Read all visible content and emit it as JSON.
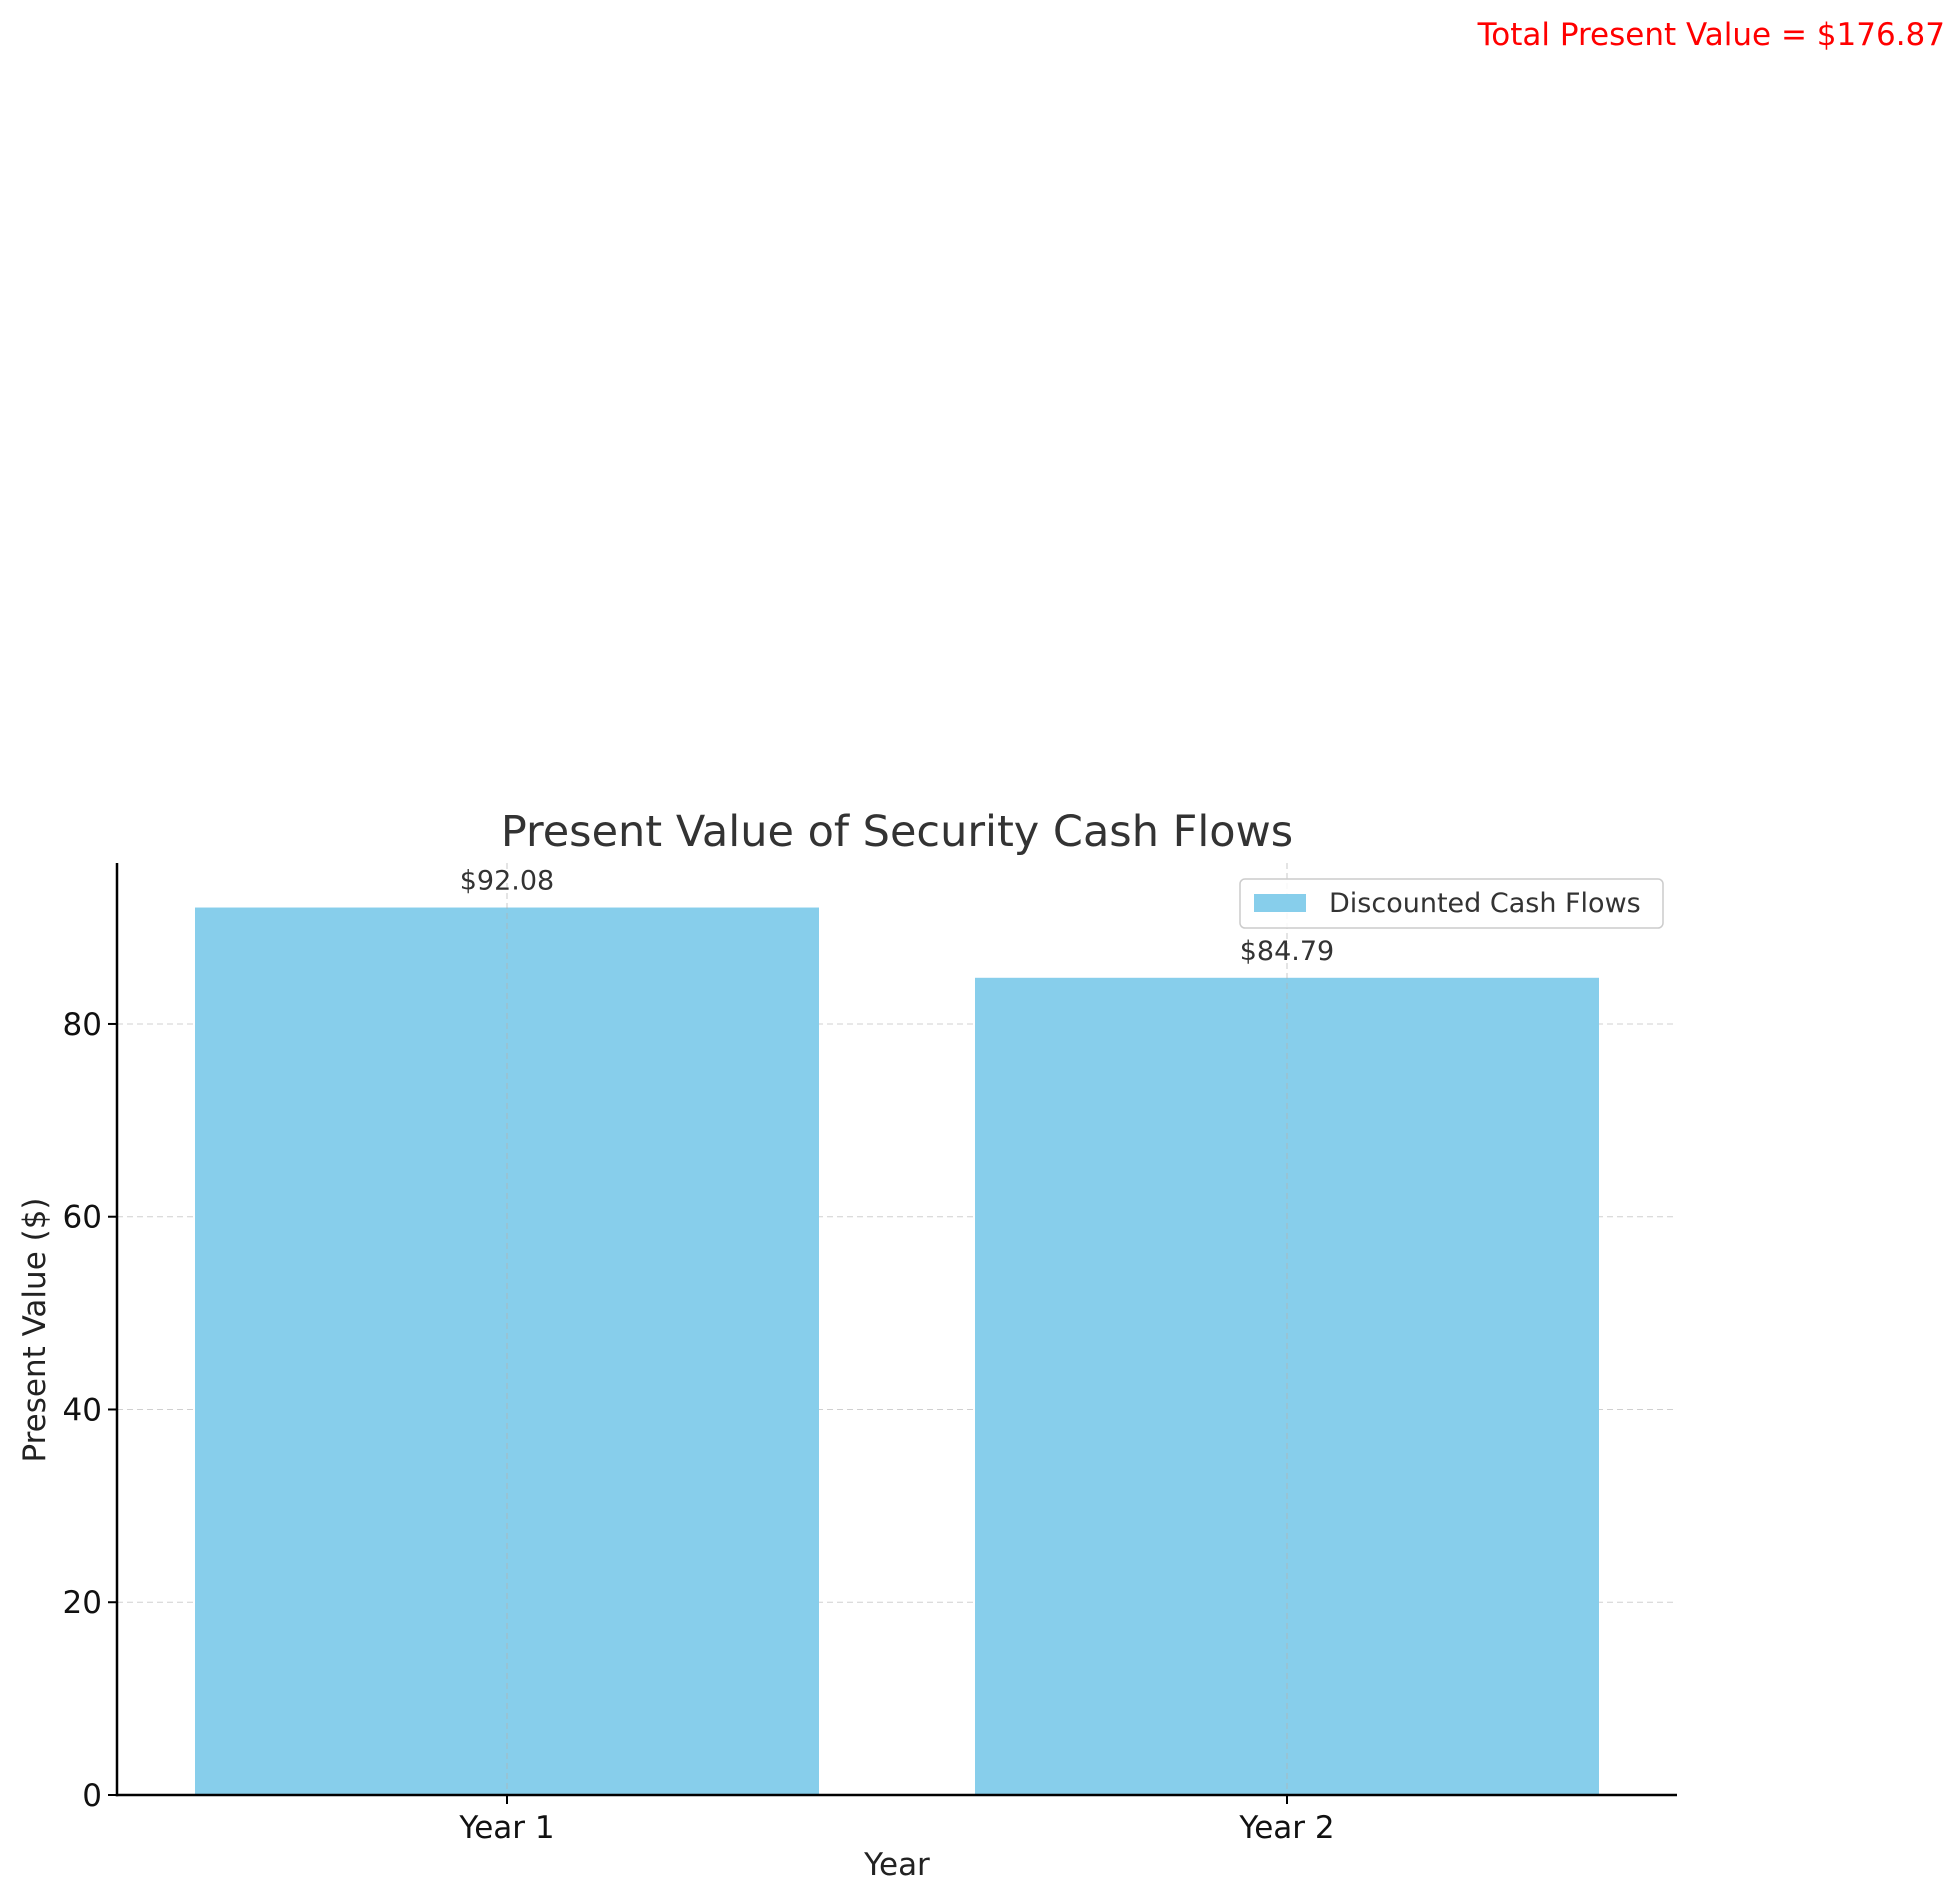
{
  "chart_data": {
    "type": "bar",
    "title": "Present Value of Security Cash Flows",
    "xlabel": "Year",
    "ylabel": "Present Value ($)",
    "categories": [
      "Year 1",
      "Year 2"
    ],
    "series": [
      {
        "name": "Discounted Cash Flows",
        "values": [
          92.08,
          84.79
        ],
        "color": "#87CEEB"
      }
    ],
    "data_labels": [
      "$92.08",
      "$84.79"
    ],
    "y_ticks": [
      0,
      20,
      40,
      60,
      80
    ],
    "ylim": [
      0,
      96.7
    ],
    "grid": true,
    "legend_position": "upper right",
    "annotation": {
      "text": "Total Present Value = $176.87",
      "color": "#ff0000"
    }
  }
}
